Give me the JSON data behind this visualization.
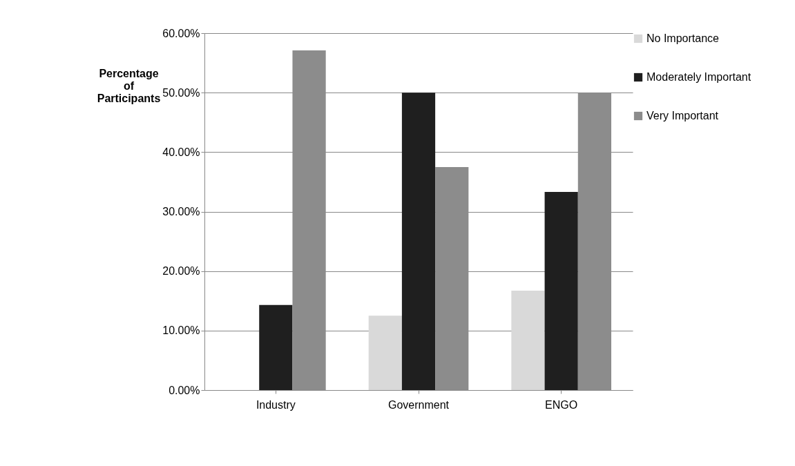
{
  "chart_data": {
    "type": "bar",
    "ylabel": "Percentage of Participants",
    "categories": [
      "Industry",
      "Government",
      "ENGO"
    ],
    "series": [
      {
        "name": "No Importance",
        "color": "#d9d9d9",
        "values": [
          0,
          12.5,
          16.7
        ]
      },
      {
        "name": "Moderately Important",
        "color": "#1f1f1f",
        "values": [
          14.3,
          50,
          33.3
        ]
      },
      {
        "name": "Very Important",
        "color": "#8c8c8c",
        "values": [
          57.1,
          37.5,
          50
        ]
      }
    ],
    "ylim": [
      0,
      60
    ],
    "yticks": [
      {
        "value": 0,
        "label": "0.00%"
      },
      {
        "value": 10,
        "label": "10.00%"
      },
      {
        "value": 20,
        "label": "20.00%"
      },
      {
        "value": 30,
        "label": "30.00%"
      },
      {
        "value": 40,
        "label": "40.00%"
      },
      {
        "value": 50,
        "label": "50.00%"
      },
      {
        "value": 60,
        "label": "60.00%"
      }
    ],
    "grid": "y",
    "legend": "right"
  }
}
